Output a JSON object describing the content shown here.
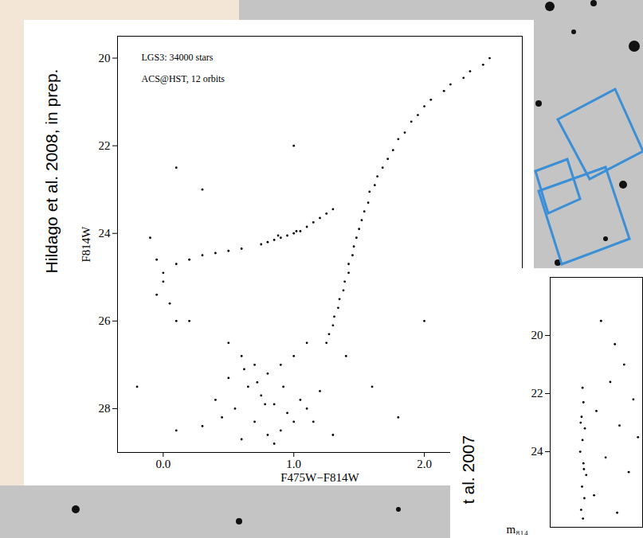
{
  "chart_data": [
    {
      "type": "scatter",
      "annotations": [
        "LGS3: 34000 stars",
        "ACS@HST, 12 orbits"
      ],
      "source": "Hildago et al. 2008, in prep.",
      "xlabel": "F475W−F814W",
      "ylabel": "F814W",
      "xlim": [
        -0.35,
        2.75
      ],
      "ylim": [
        29,
        19.5
      ],
      "xticks": [
        0,
        1,
        2
      ],
      "yticks": [
        20,
        22,
        24,
        26,
        28
      ],
      "grid": false,
      "color": "#000000",
      "marker": "dot",
      "x": [
        2.5,
        2.45,
        2.35,
        2.3,
        2.2,
        2.15,
        2.05,
        2.0,
        1.95,
        1.9,
        1.85,
        1.8,
        1.76,
        1.72,
        1.68,
        1.64,
        1.62,
        1.58,
        1.57,
        1.54,
        1.52,
        1.5,
        1.48,
        1.46,
        1.45,
        1.42,
        1.42,
        1.39,
        1.38,
        1.35,
        1.34,
        1.31,
        1.3,
        1.27,
        1.25,
        0.75,
        0.8,
        0.85,
        0.9,
        0.95,
        1.0,
        1.05,
        1.1,
        1.15,
        1.2,
        1.25,
        1.3,
        0.88,
        1.02,
        0.0,
        0.1,
        0.2,
        0.3,
        0.4,
        0.5,
        0.6,
        -0.1,
        -0.05,
        0.0,
        0.05,
        0.1,
        -0.05,
        0.5,
        0.6,
        0.7,
        0.8,
        0.9,
        1.0,
        1.1,
        0.65,
        0.75,
        0.85,
        0.95,
        0.55,
        0.7,
        0.8,
        0.9,
        1.0,
        1.1,
        1.2,
        0.6,
        0.4,
        0.3,
        1.3,
        0.85,
        0.5,
        0.72,
        0.78,
        0.92,
        0.62,
        1.05,
        0.45,
        1.15,
        0.2,
        1.6,
        1.8,
        0.1,
        1.4,
        -0.2,
        2.0,
        0.3,
        1.0,
        0.1
      ],
      "values": [
        20.0,
        20.15,
        20.3,
        20.45,
        20.6,
        20.75,
        20.95,
        21.1,
        21.3,
        21.45,
        21.7,
        21.85,
        22.1,
        22.3,
        22.5,
        22.7,
        22.9,
        23.05,
        23.3,
        23.5,
        23.7,
        23.9,
        24.1,
        24.3,
        24.5,
        24.7,
        24.9,
        25.1,
        25.3,
        25.5,
        25.7,
        25.9,
        26.1,
        26.3,
        26.5,
        24.25,
        24.2,
        24.15,
        24.1,
        24.05,
        24.0,
        23.95,
        23.85,
        23.75,
        23.65,
        23.55,
        23.45,
        24.05,
        23.95,
        24.9,
        24.7,
        24.6,
        24.5,
        24.45,
        24.4,
        24.35,
        24.1,
        24.6,
        25.1,
        25.6,
        26.0,
        25.4,
        26.5,
        26.8,
        27.0,
        27.2,
        27.0,
        26.8,
        26.5,
        27.5,
        27.7,
        27.9,
        28.1,
        28.0,
        28.3,
        28.6,
        28.5,
        28.3,
        28.0,
        27.6,
        28.7,
        27.8,
        28.4,
        28.6,
        28.8,
        27.3,
        27.4,
        27.9,
        27.5,
        27.1,
        27.8,
        28.2,
        28.3,
        26.0,
        27.5,
        28.2,
        28.5,
        26.8,
        27.5,
        26.0,
        23.0,
        22.0,
        22.5
      ]
    },
    {
      "type": "scatter",
      "source": "t al. 2007",
      "ylabel": "m₈₁₄",
      "xlim": [
        -0.5,
        1.5
      ],
      "ylim": [
        26.6,
        18
      ],
      "yticks": [
        20,
        22,
        24
      ],
      "tick_labels": "y",
      "grid": false,
      "color": "#000000",
      "marker": "dot",
      "x": [
        0.2,
        0.22,
        0.18,
        0.25,
        0.2,
        0.15,
        0.22,
        0.28,
        0.19,
        0.24,
        0.17,
        0.21,
        0.16,
        0.23,
        0.6,
        0.9,
        1.1,
        0.8,
        1.3,
        0.5,
        1.0,
        1.4,
        0.7,
        1.2,
        0.45,
        0.95
      ],
      "values": [
        21.8,
        22.3,
        22.8,
        23.2,
        23.6,
        24.0,
        24.4,
        24.8,
        25.2,
        25.6,
        26.0,
        26.3,
        23.0,
        24.6,
        19.5,
        20.3,
        21.0,
        21.6,
        22.2,
        22.6,
        23.1,
        23.5,
        24.2,
        24.7,
        25.5,
        26.1
      ]
    }
  ]
}
